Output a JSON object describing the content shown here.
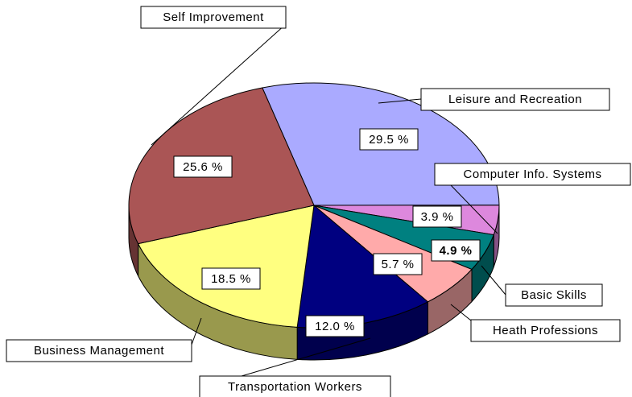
{
  "chart_data": {
    "type": "pie3d",
    "categories": [
      "Leisure and Recreation",
      "Computer Info. Systems",
      "Basic Skills",
      "Heath Professions",
      "Transportation Workers",
      "Business Management",
      "Self Improvement"
    ],
    "values": [
      29.5,
      3.9,
      4.9,
      5.7,
      12.0,
      18.5,
      25.6
    ],
    "value_labels": [
      "29.5 %",
      "3.9 %",
      "4.9 %",
      "5.7 %",
      "12.0 %",
      "18.5 %",
      "25.6 %"
    ],
    "colors": [
      "#aaaaff",
      "#dd88dd",
      "#008080",
      "#ffaaaa",
      "#000080",
      "#ffff80",
      "#aa5555"
    ]
  }
}
